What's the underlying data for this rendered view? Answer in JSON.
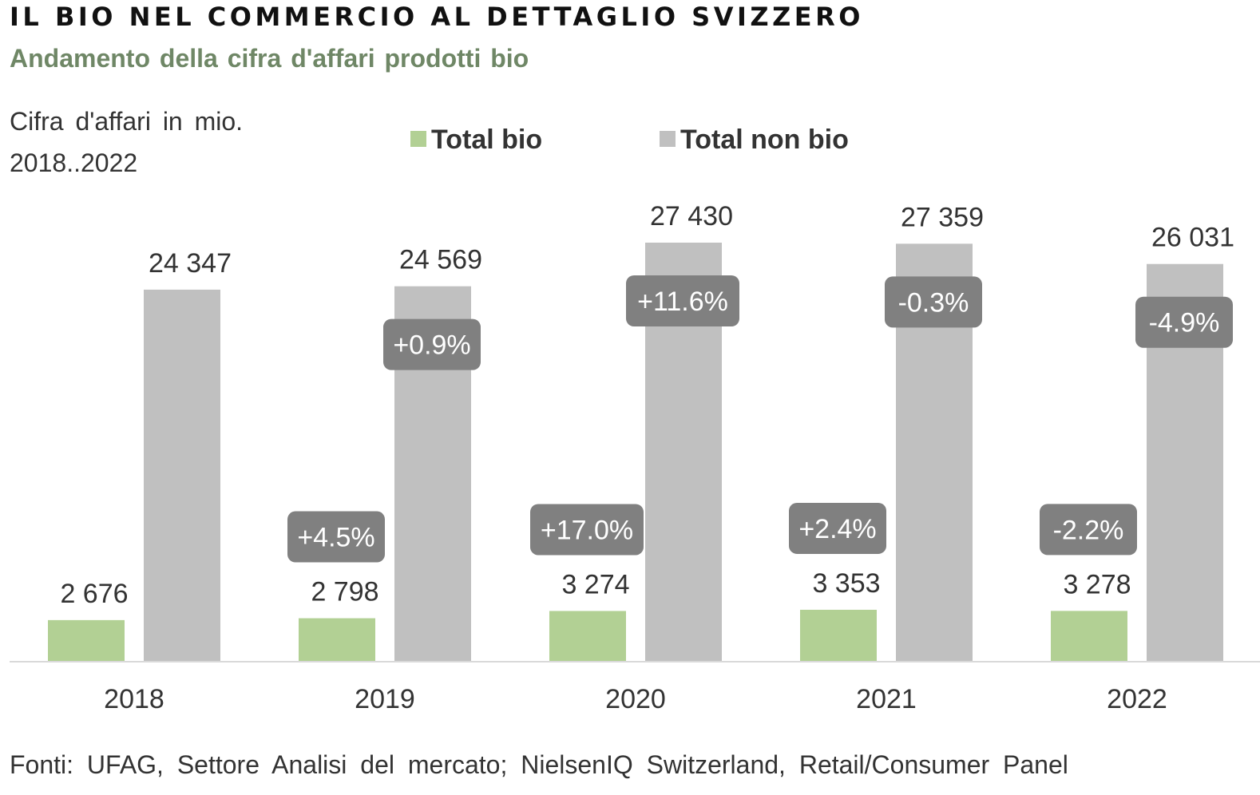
{
  "header": {
    "title": "IL BIO NEL COMMERCIO AL DETTAGLIO SVIZZERO",
    "subtitle": "Andamento  della cifra d'affari prodotti bio",
    "unit_line1": "Cifra d'affari in mio.",
    "unit_line2": "2018..2022"
  },
  "footer": {
    "source": "Fonti: UFAG, Settore Analisi del mercato; NielsenIQ Switzerland, Retail/Consumer Panel"
  },
  "colors": {
    "bio": "#b2d094",
    "non_bio": "#c0c0c0",
    "badge": "#808080",
    "badge_text": "#ffffff",
    "axis": "#d9d9d9"
  },
  "chart_data": {
    "type": "bar",
    "categories": [
      "2018",
      "2019",
      "2020",
      "2021",
      "2022"
    ],
    "series": [
      {
        "name": "Total bio",
        "values": [
          2676,
          2798,
          3274,
          3353,
          3278
        ],
        "value_labels": [
          "2 676",
          "2 798",
          "3 274",
          "3 353",
          "3 278"
        ],
        "change_labels": [
          "",
          "+4.5%",
          "+17.0%",
          "+2.4%",
          "-2.2%"
        ]
      },
      {
        "name": "Total non bio",
        "values": [
          24347,
          24569,
          27430,
          27359,
          26031
        ],
        "value_labels": [
          "24 347",
          "24 569",
          "27 430",
          "27 359",
          "26 031"
        ],
        "change_labels": [
          "",
          "+0.9%",
          "+11.6%",
          "-0.3%",
          "-4.9%"
        ]
      }
    ],
    "ylim": [
      0,
      27430
    ],
    "grid": false,
    "legend": "top-center"
  }
}
